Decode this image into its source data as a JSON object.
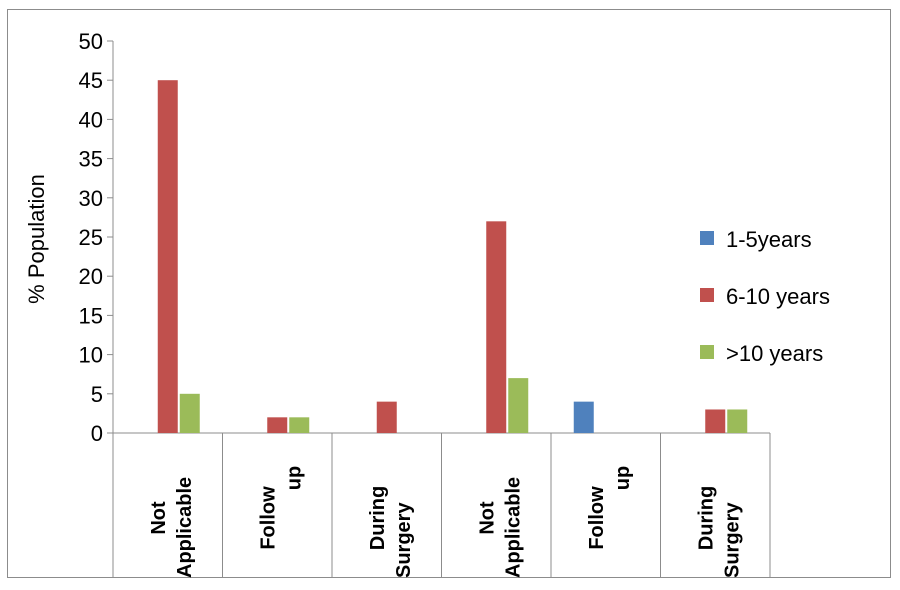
{
  "chart_data": {
    "type": "bar",
    "title": "",
    "ylabel": "% Population",
    "ylim": [
      0,
      50
    ],
    "yticks": [
      0,
      5,
      10,
      15,
      20,
      25,
      30,
      35,
      40,
      45,
      50
    ],
    "categories": [
      [
        "Not",
        "Applicable"
      ],
      [
        "Follow",
        "up"
      ],
      [
        "During",
        "Surgery"
      ],
      [
        "Not",
        "Applicable"
      ],
      [
        "Follow",
        "up"
      ],
      [
        "During",
        "Surgery"
      ]
    ],
    "series": [
      {
        "name": "1-5years",
        "color": "#4f81bd",
        "values": [
          0,
          0,
          0,
          0,
          4,
          0
        ]
      },
      {
        "name": "6-10 years",
        "color": "#c0504d",
        "values": [
          45,
          2,
          4,
          27,
          0,
          3
        ]
      },
      {
        "name": ">10 years",
        "color": "#9bbb59",
        "values": [
          5,
          2,
          0,
          7,
          0,
          3
        ]
      }
    ],
    "grid": false,
    "legend_position": "right"
  }
}
